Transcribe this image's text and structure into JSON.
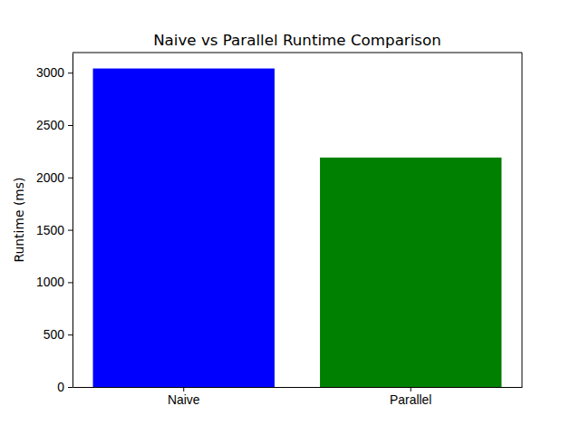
{
  "chart_data": {
    "type": "bar",
    "title": "Naive vs Parallel Runtime Comparison",
    "y_label": "Runtime (ms)",
    "categories": [
      "Naive",
      "Parallel"
    ],
    "values": [
      3040,
      2190
    ],
    "colors": [
      "blue",
      "green"
    ],
    "ylim": [
      0,
      3192
    ],
    "yticks": [
      0,
      500,
      1000,
      1500,
      2000,
      2500,
      3000
    ],
    "grid": false
  }
}
